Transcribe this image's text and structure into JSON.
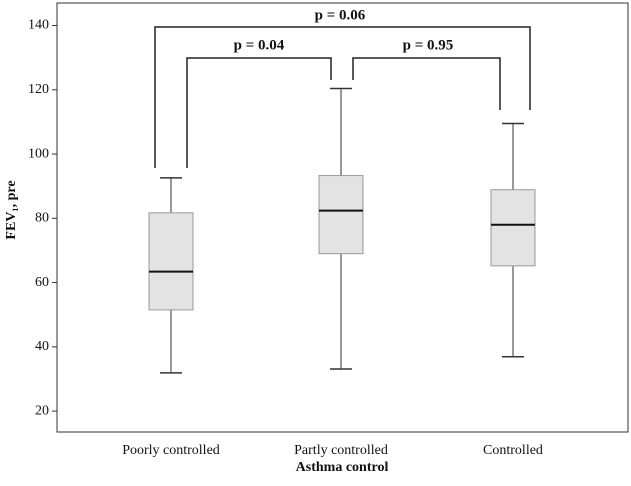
{
  "chart_data": {
    "type": "box",
    "x_label": "Asthma control",
    "y_label": "FEV₁, pre",
    "categories": [
      "Poorly controlled",
      "Partly controlled",
      "Controlled"
    ],
    "boxes": [
      {
        "min": 31.9,
        "q1": 51.5,
        "median": 63.4,
        "q3": 81.7,
        "max": 92.6
      },
      {
        "min": 33.1,
        "q1": 69.0,
        "median": 82.4,
        "q3": 93.3,
        "max": 120.4
      },
      {
        "min": 36.9,
        "q1": 65.2,
        "median": 78.0,
        "q3": 88.9,
        "max": 109.5
      }
    ],
    "color": "#e3e3e3",
    "ylim": [
      13.5,
      147
    ],
    "yticks": [
      20,
      40,
      60,
      80,
      100,
      120,
      140
    ],
    "annotations": [
      "p = 0.06",
      "p = 0.04",
      "p = 0.95"
    ]
  }
}
